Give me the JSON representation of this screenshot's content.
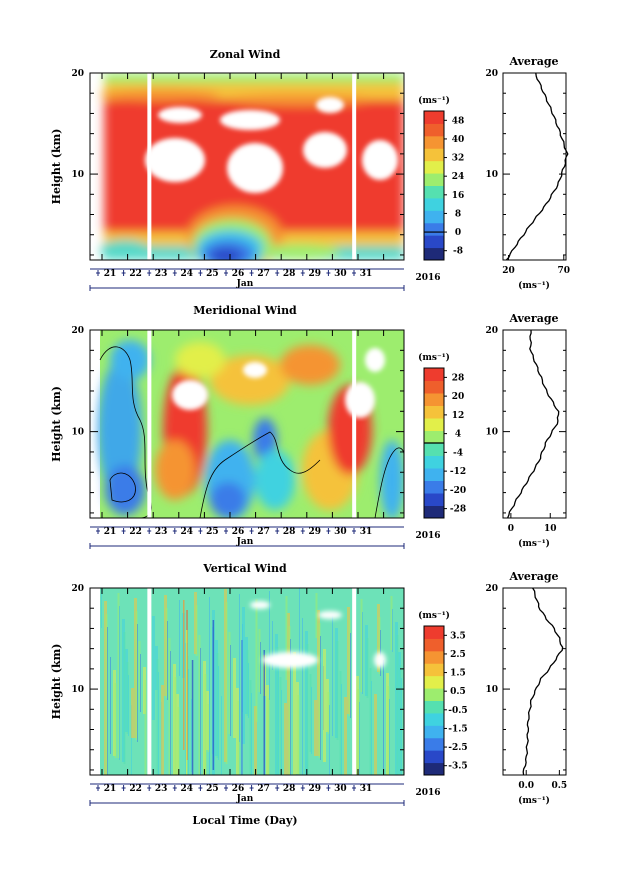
{
  "figure": {
    "x_axis_label": "Local Time (Day)",
    "month_label": "Jan",
    "year_label": "2016",
    "day_labels": [
      "21",
      "22",
      "23",
      "24",
      "25",
      "26",
      "27",
      "28",
      "29",
      "30",
      "31"
    ],
    "height_label": "Height (km)",
    "unit_label": "(ms⁻¹)",
    "average_title": "Average"
  },
  "chart_data": [
    {
      "type": "heatmap",
      "title": "Zonal Wind",
      "ylabel": "Height (km)",
      "y_ticks": [
        "20",
        "10"
      ],
      "ylim": [
        1.5,
        20
      ],
      "colorbar": {
        "ticks": [
          "48",
          "40",
          "32",
          "24",
          "16",
          "8",
          "0",
          "-8"
        ],
        "min": -12,
        "max": 52,
        "zero_line": 0
      },
      "palette": [
        "#1e2a78",
        "#2948c8",
        "#3a7ce8",
        "#3fb2ef",
        "#3fd2e0",
        "#55e0b0",
        "#9ded6e",
        "#e2ef4a",
        "#f5c23a",
        "#f59432",
        "#ef5f2c",
        "#ee3c2e"
      ],
      "data_gaps_day": [
        22.85,
        30.85
      ],
      "profile": {
        "title": "Average",
        "x_ticks": [
          "20",
          "70"
        ],
        "xlim": [
          15,
          72
        ],
        "xlabel": "(ms⁻¹)",
        "height": [
          1.5,
          3,
          5,
          7,
          9,
          11,
          12,
          14,
          16,
          18,
          20
        ],
        "value": [
          18,
          27,
          40,
          54,
          65,
          71,
          73,
          67,
          60,
          52,
          44
        ]
      }
    },
    {
      "type": "heatmap",
      "title": "Meridional Wind",
      "ylabel": "Height (km)",
      "y_ticks": [
        "20",
        "10"
      ],
      "ylim": [
        1.5,
        20
      ],
      "colorbar": {
        "ticks": [
          "28",
          "20",
          "12",
          "4",
          "-4",
          "-12",
          "-20",
          "-28"
        ],
        "min": -32,
        "max": 32,
        "zero_line": 0
      },
      "palette": [
        "#1e2a78",
        "#2948c8",
        "#3a7ce8",
        "#3fb2ef",
        "#3fd2e0",
        "#55e0b0",
        "#9ded6e",
        "#e2ef4a",
        "#f5c23a",
        "#f59432",
        "#ef5f2c",
        "#ee3c2e"
      ],
      "data_gaps_day": [
        22.85,
        30.85
      ],
      "profile": {
        "title": "Average",
        "x_ticks": [
          "0",
          "10"
        ],
        "xlim": [
          -2,
          14
        ],
        "xlabel": "(ms⁻¹)",
        "height": [
          1.5,
          3,
          5,
          7,
          9,
          11,
          12,
          14,
          16,
          18,
          20
        ],
        "value": [
          -1,
          1,
          4,
          7,
          9,
          12,
          12,
          9,
          7,
          5,
          5
        ]
      }
    },
    {
      "type": "heatmap",
      "title": "Vertical Wind",
      "ylabel": "Height (km)",
      "y_ticks": [
        "20",
        "10"
      ],
      "ylim": [
        1.5,
        20
      ],
      "colorbar": {
        "ticks": [
          "3.5",
          "2.5",
          "1.5",
          "0.5",
          "-0.5",
          "-1.5",
          "-2.5",
          "-3.5"
        ],
        "min": -4,
        "max": 4,
        "zero_line": null
      },
      "palette": [
        "#1e2a78",
        "#2948c8",
        "#3a7ce8",
        "#3fb2ef",
        "#3fd2e0",
        "#55e0b0",
        "#9ded6e",
        "#e2ef4a",
        "#f5c23a",
        "#f59432",
        "#ef5f2c",
        "#ee3c2e"
      ],
      "data_gaps_day": [
        22.85,
        30.85
      ],
      "profile": {
        "title": "Average",
        "x_ticks": [
          "0.0",
          "0.5"
        ],
        "xlim": [
          -0.35,
          0.6
        ],
        "xlabel": "(ms⁻¹)",
        "height": [
          1.5,
          3,
          5,
          7,
          9,
          10,
          11,
          12,
          13,
          14,
          15,
          16,
          17,
          18,
          20
        ],
        "value": [
          -0.05,
          0.0,
          0.02,
          0.03,
          0.08,
          0.15,
          0.22,
          0.35,
          0.45,
          0.55,
          0.5,
          0.42,
          0.3,
          0.2,
          0.1
        ]
      }
    }
  ]
}
